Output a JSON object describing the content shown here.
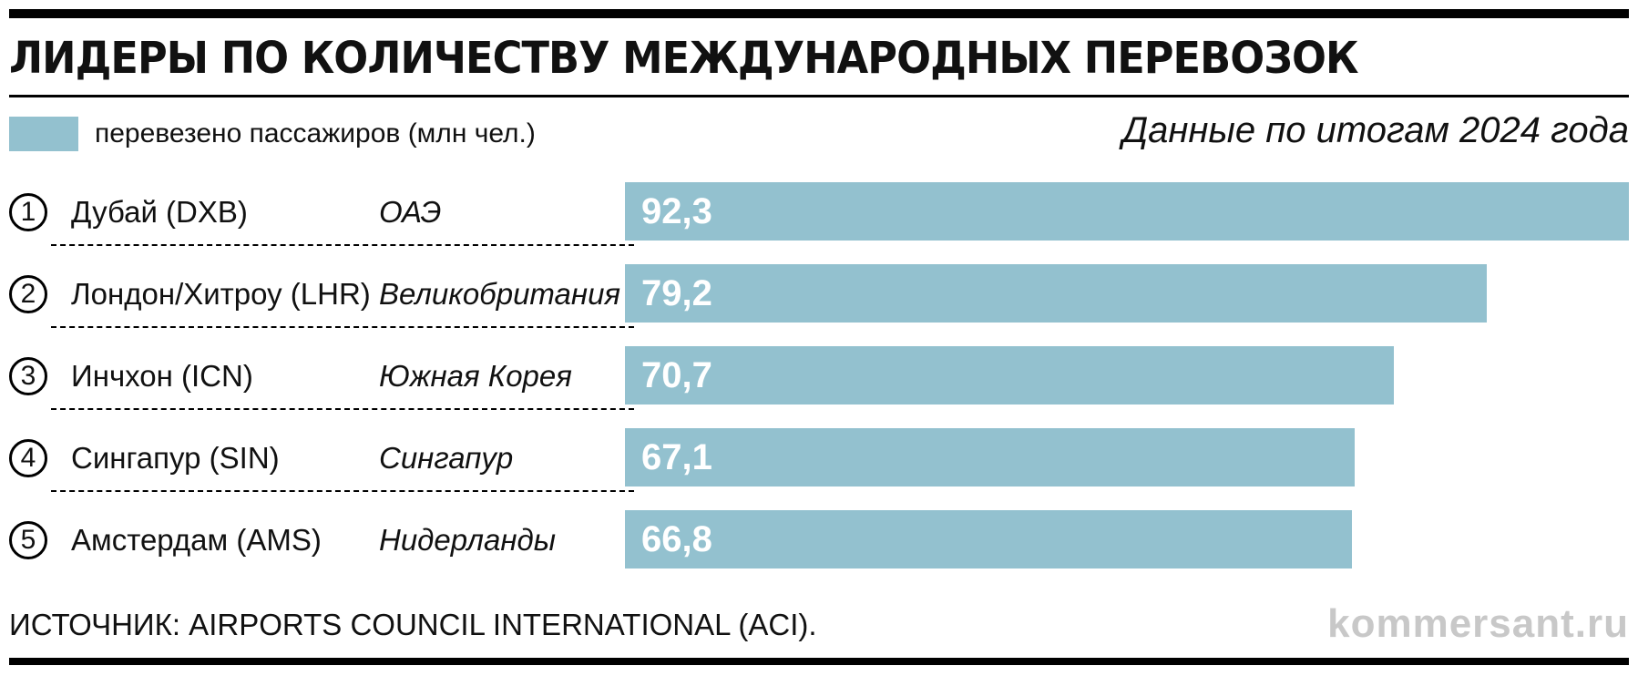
{
  "title": "ЛИДЕРЫ ПО КОЛИЧЕСТВУ МЕЖДУНАРОДНЫХ ПЕРЕВОЗОК",
  "legend": {
    "label": "перевезено пассажиров (млн чел.)",
    "color": "#93c1cf"
  },
  "note": "Данные по итогам 2024 года",
  "source": "ИСТОЧНИК: AIRPORTS COUNCIL INTERNATIONAL (ACI).",
  "brand": "kommersant.ru",
  "chart_data": {
    "type": "bar",
    "orientation": "horizontal",
    "series_label": "перевезено пассажиров (млн чел.)",
    "bar_color": "#93c1cf",
    "rows": [
      {
        "rank": "1",
        "airport": "Дубай (DXB)",
        "country": "ОАЭ",
        "value": 92.3,
        "value_label": "92,3"
      },
      {
        "rank": "2",
        "airport": "Лондон/Хитроу (LHR)",
        "country": "Великобритания",
        "value": 79.2,
        "value_label": "79,2"
      },
      {
        "rank": "3",
        "airport": "Инчхон (ICN)",
        "country": "Южная Корея",
        "value": 70.7,
        "value_label": "70,7"
      },
      {
        "rank": "4",
        "airport": "Сингапур (SIN)",
        "country": "Сингапур",
        "value": 67.1,
        "value_label": "67,1"
      },
      {
        "rank": "5",
        "airport": "Амстердам (AMS)",
        "country": "Нидерланды",
        "value": 66.8,
        "value_label": "66,8"
      }
    ]
  }
}
